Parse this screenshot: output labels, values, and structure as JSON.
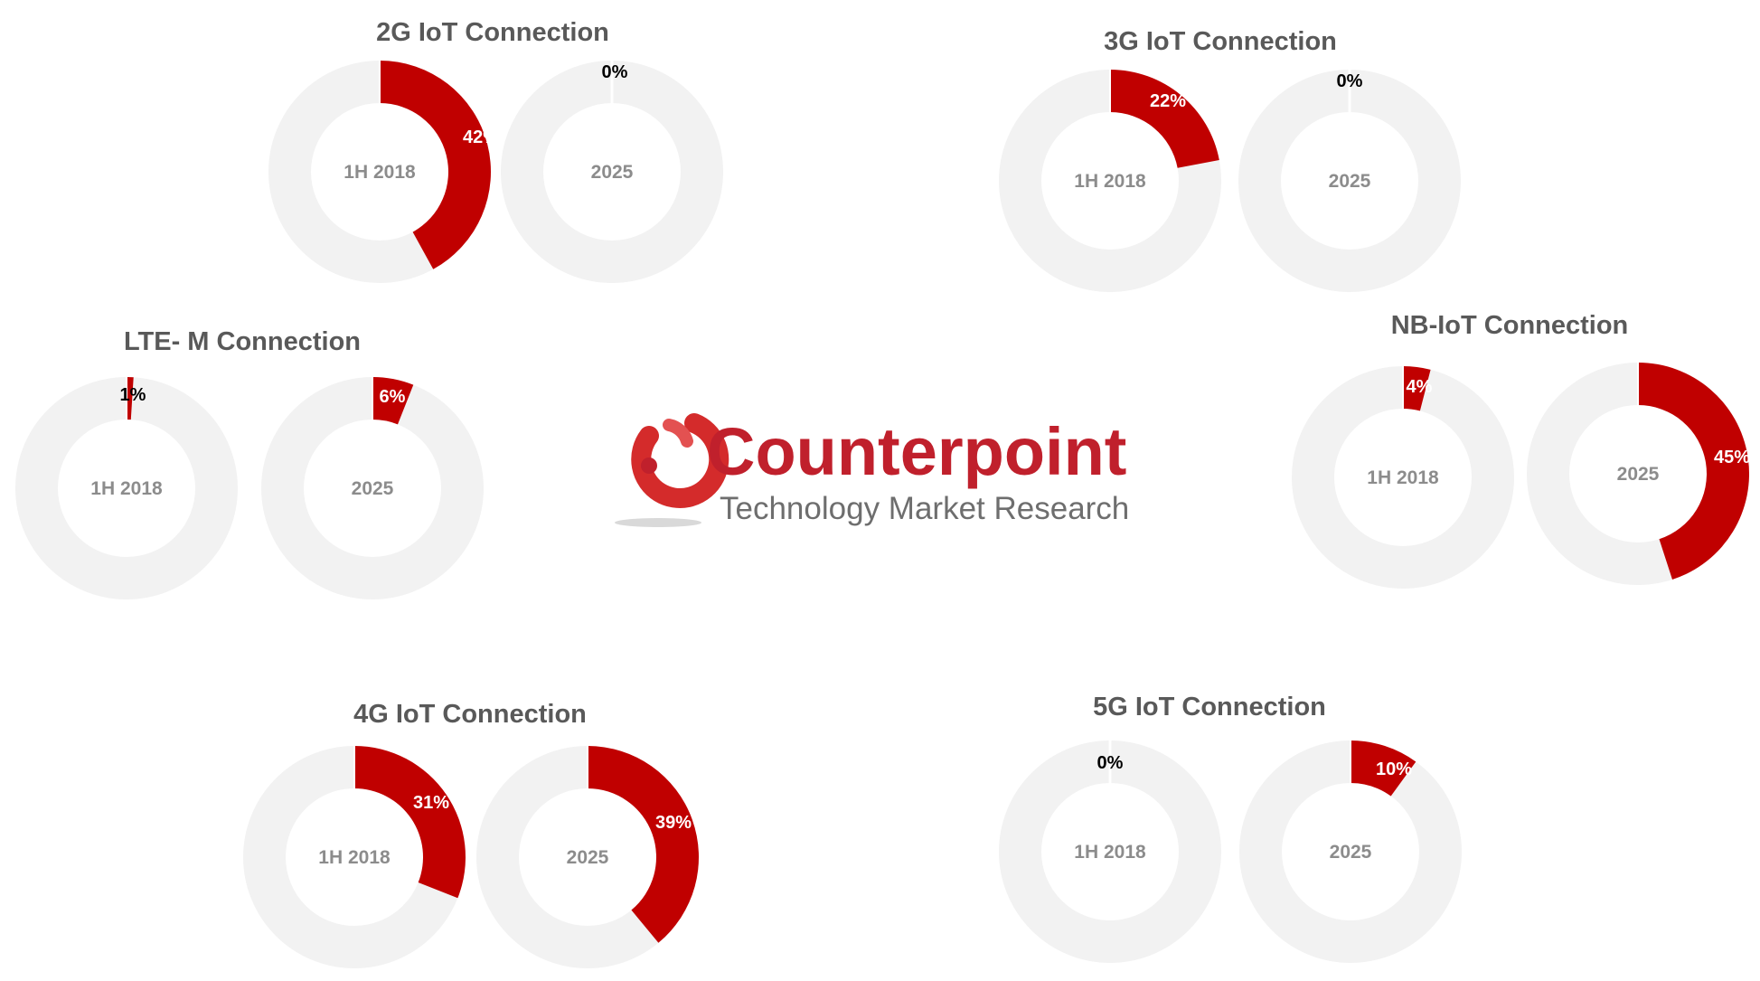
{
  "colors": {
    "share": "#c00000",
    "rest": "#f2f2f2",
    "logo_red": "#c0202c",
    "title": "#595959",
    "center": "#8c8c8c"
  },
  "logo": {
    "word": "Counterpoint",
    "tagline": "Technology Market Research"
  },
  "chart_data": [
    {
      "type": "pie",
      "title": "2G IoT Connection",
      "series": [
        {
          "name": "1H 2018",
          "value": 42,
          "label": "42%"
        },
        {
          "name": "2025",
          "value": 0,
          "label": "0%"
        }
      ]
    },
    {
      "type": "pie",
      "title": "3G IoT Connection",
      "series": [
        {
          "name": "1H 2018",
          "value": 22,
          "label": "22%"
        },
        {
          "name": "2025",
          "value": 0,
          "label": "0%"
        }
      ]
    },
    {
      "type": "pie",
      "title": "LTE- M Connection",
      "series": [
        {
          "name": "1H 2018",
          "value": 1,
          "label": "1%"
        },
        {
          "name": "2025",
          "value": 6,
          "label": "6%"
        }
      ]
    },
    {
      "type": "pie",
      "title": "NB-IoT Connection",
      "series": [
        {
          "name": "1H 2018",
          "value": 4,
          "label": "4%"
        },
        {
          "name": "2025",
          "value": 45,
          "label": "45%"
        }
      ]
    },
    {
      "type": "pie",
      "title": "4G IoT Connection",
      "series": [
        {
          "name": "1H 2018",
          "value": 31,
          "label": "31%"
        },
        {
          "name": "2025",
          "value": 39,
          "label": "39%"
        }
      ]
    },
    {
      "type": "pie",
      "title": "5G IoT Connection",
      "series": [
        {
          "name": "1H 2018",
          "value": 0,
          "label": "0%"
        },
        {
          "name": "2025",
          "value": 10,
          "label": "10%"
        }
      ]
    }
  ]
}
